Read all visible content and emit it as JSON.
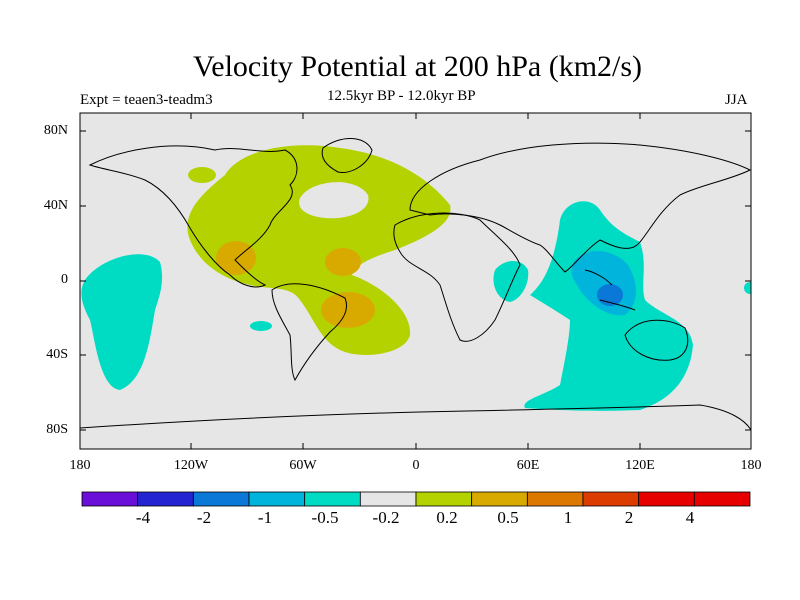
{
  "title": "Velocity Potential at 200 hPa (km2/s)",
  "experiment": "Expt = teaen3-teadm3",
  "period": "12.5kyr BP - 12.0kyr BP",
  "season": "JJA",
  "lat_labels": [
    "80N",
    "40N",
    "0",
    "40S",
    "80S"
  ],
  "lon_labels": [
    "180",
    "120W",
    "60W",
    "0",
    "60E",
    "120E",
    "180"
  ],
  "colorbar": {
    "colors": [
      "#6a0fd8",
      "#2424d2",
      "#0a78d6",
      "#00b4dc",
      "#00dcc4",
      "#e6e6e6",
      "#b4d200",
      "#d8aa00",
      "#dc7800",
      "#dc3c00",
      "#e60000",
      "#e60000"
    ],
    "labels": [
      "-4",
      "-2",
      "-1",
      "-0.5",
      "-0.2",
      "0.2",
      "0.5",
      "1",
      "2",
      "4"
    ]
  },
  "palette": {
    "background": "#e6e6e6",
    "cyan": "#00dcc4",
    "lightblue": "#00b4dc",
    "blue": "#0a78d6",
    "yellowgreen": "#b4d200",
    "orange": "#d8aa00"
  }
}
